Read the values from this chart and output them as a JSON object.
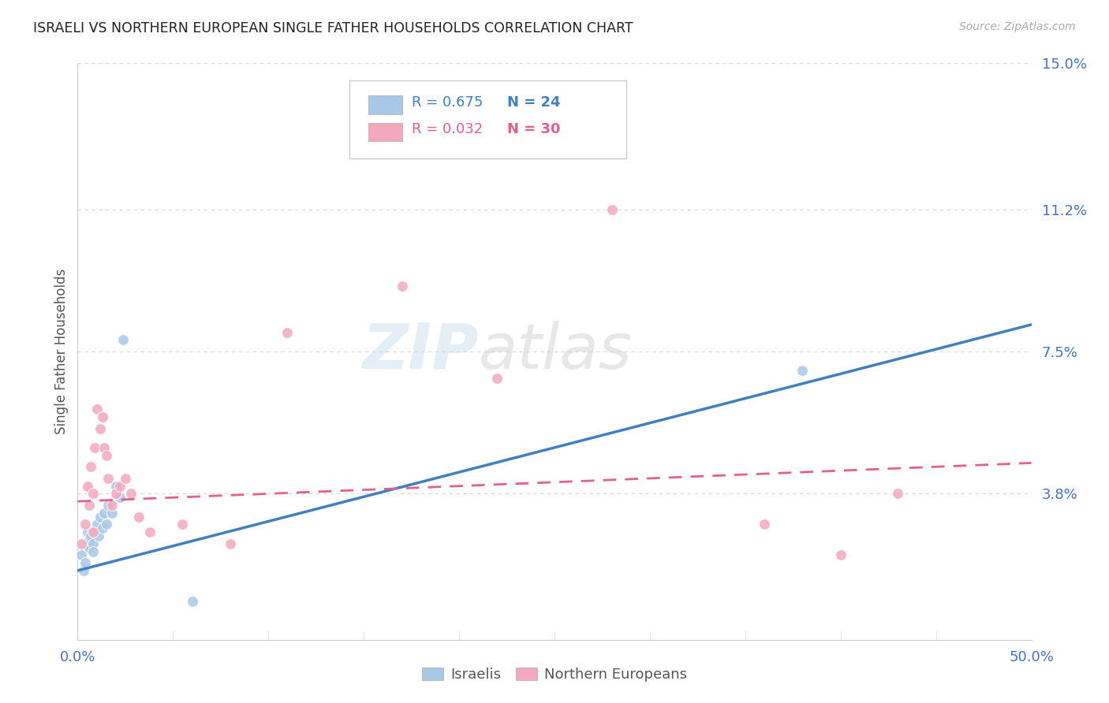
{
  "title": "ISRAELI VS NORTHERN EUROPEAN SINGLE FATHER HOUSEHOLDS CORRELATION CHART",
  "source": "Source: ZipAtlas.com",
  "ylabel": "Single Father Households",
  "xlim": [
    0.0,
    0.5
  ],
  "ylim": [
    0.0,
    0.15
  ],
  "yticks": [
    0.0,
    0.038,
    0.075,
    0.112,
    0.15
  ],
  "ytick_labels": [
    "",
    "3.8%",
    "7.5%",
    "11.2%",
    "15.0%"
  ],
  "watermark_zip": "ZIP",
  "watermark_atlas": "atlas",
  "legend_r1": "R = 0.675",
  "legend_n1": "N = 24",
  "legend_r2": "R = 0.032",
  "legend_n2": "N = 30",
  "blue_color": "#a8c8e8",
  "pink_color": "#f4a8be",
  "blue_line_color": "#4080c0",
  "pink_line_color": "#e06090",
  "axis_label_color": "#4472c4",
  "israeli_x": [
    0.002,
    0.003,
    0.004,
    0.005,
    0.005,
    0.006,
    0.006,
    0.007,
    0.008,
    0.008,
    0.009,
    0.01,
    0.011,
    0.012,
    0.013,
    0.014,
    0.015,
    0.016,
    0.018,
    0.02,
    0.022,
    0.024,
    0.06,
    0.38
  ],
  "israeli_y": [
    0.022,
    0.018,
    0.02,
    0.025,
    0.028,
    0.024,
    0.026,
    0.027,
    0.025,
    0.023,
    0.028,
    0.03,
    0.027,
    0.032,
    0.029,
    0.033,
    0.03,
    0.035,
    0.033,
    0.04,
    0.037,
    0.078,
    0.01,
    0.07
  ],
  "northern_x": [
    0.002,
    0.004,
    0.005,
    0.006,
    0.007,
    0.008,
    0.008,
    0.009,
    0.01,
    0.012,
    0.013,
    0.014,
    0.015,
    0.016,
    0.018,
    0.02,
    0.022,
    0.025,
    0.028,
    0.032,
    0.038,
    0.055,
    0.08,
    0.11,
    0.17,
    0.22,
    0.28,
    0.36,
    0.4,
    0.43
  ],
  "northern_y": [
    0.025,
    0.03,
    0.04,
    0.035,
    0.045,
    0.028,
    0.038,
    0.05,
    0.06,
    0.055,
    0.058,
    0.05,
    0.048,
    0.042,
    0.035,
    0.038,
    0.04,
    0.042,
    0.038,
    0.032,
    0.028,
    0.03,
    0.025,
    0.08,
    0.092,
    0.068,
    0.112,
    0.03,
    0.022,
    0.038
  ],
  "blue_trendline_x": [
    0.0,
    0.5
  ],
  "blue_trendline_y": [
    0.018,
    0.082
  ],
  "pink_trendline_x": [
    0.0,
    0.5
  ],
  "pink_trendline_y": [
    0.036,
    0.046
  ],
  "marker_size": 100,
  "background_color": "#ffffff",
  "grid_color": "#d8d8d8"
}
